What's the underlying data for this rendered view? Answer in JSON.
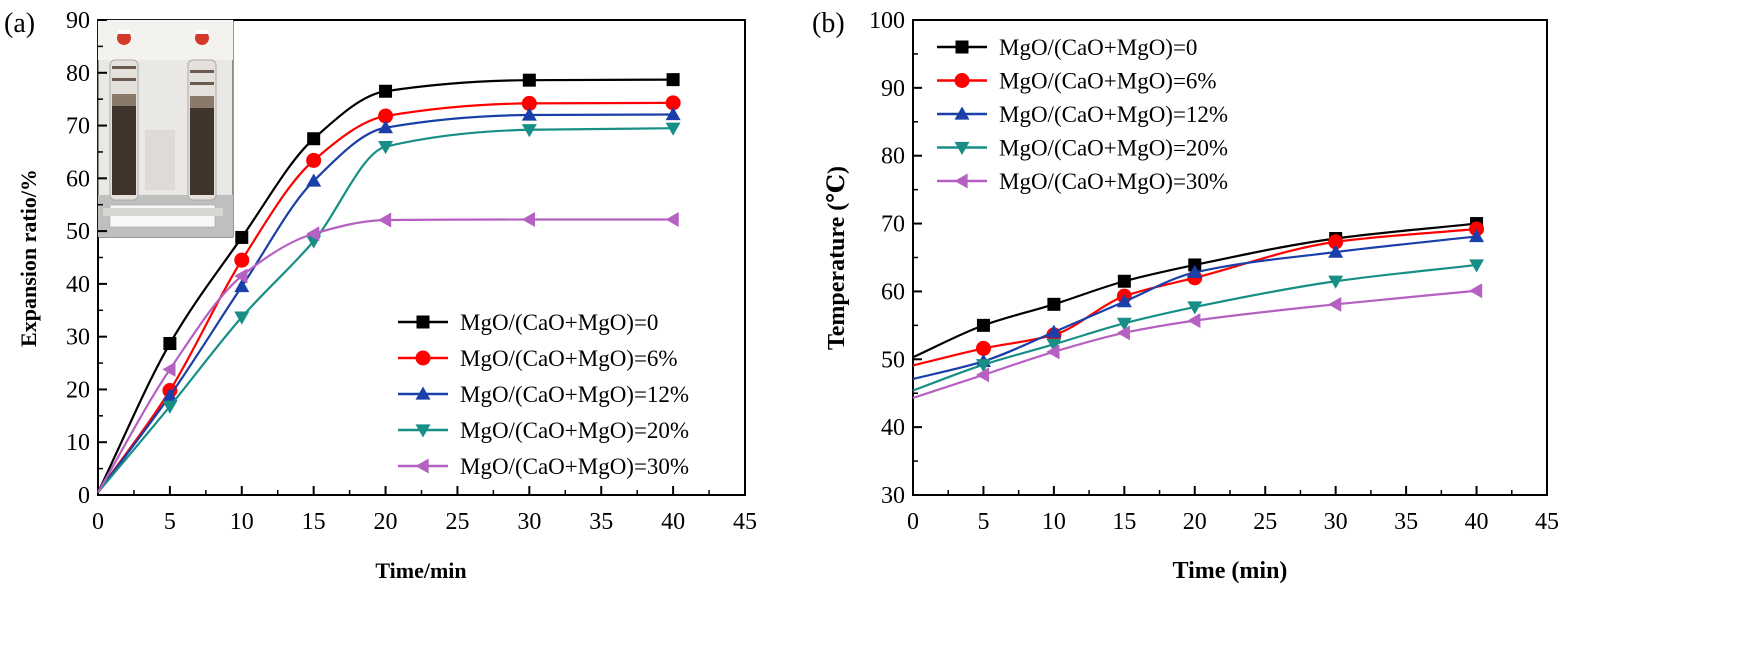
{
  "chart_data": [
    {
      "type": "line",
      "panel_label": "(a)",
      "xlabel": "Time/min",
      "ylabel": "Expansion ratio/%",
      "xlim": [
        0,
        45
      ],
      "ylim": [
        0,
        90
      ],
      "xticks": [
        0,
        5,
        10,
        15,
        20,
        25,
        30,
        35,
        40,
        45
      ],
      "yticks": [
        0,
        10,
        20,
        30,
        40,
        50,
        60,
        70,
        80,
        90
      ],
      "legend_position": "lower-right",
      "inset_image": "photo of two test tubes with expanded dark material",
      "series": [
        {
          "name": "MgO/(CaO+MgO)=0",
          "color": "#000000",
          "marker": "square",
          "x": [
            0,
            5,
            10,
            15,
            20,
            30,
            40
          ],
          "y": [
            0.5,
            28.7,
            48.8,
            67.5,
            76.5,
            78.6,
            78.7
          ]
        },
        {
          "name": "MgO/(CaO+MgO)=6%",
          "color": "#ff0000",
          "marker": "circle",
          "x": [
            0,
            5,
            10,
            15,
            20,
            30,
            40
          ],
          "y": [
            0.5,
            19.8,
            44.5,
            63.4,
            71.8,
            74.2,
            74.3
          ]
        },
        {
          "name": "MgO/(CaO+MgO)=12%",
          "color": "#1a3fa8",
          "marker": "triangle-up",
          "x": [
            0,
            5,
            10,
            15,
            20,
            30,
            40
          ],
          "y": [
            0.5,
            18.8,
            39.5,
            59.5,
            69.6,
            72.0,
            72.1
          ]
        },
        {
          "name": "MgO/(CaO+MgO)=20%",
          "color": "#178f86",
          "marker": "triangle-down",
          "x": [
            0,
            5,
            10,
            15,
            20,
            30,
            40
          ],
          "y": [
            0.5,
            16.8,
            33.7,
            48.1,
            66.0,
            69.2,
            69.5
          ]
        },
        {
          "name": "MgO/(CaO+MgO)=30%",
          "color": "#b561c1",
          "marker": "triangle-left",
          "x": [
            0,
            5,
            10,
            15,
            20,
            30,
            40
          ],
          "y": [
            0.5,
            23.8,
            41.5,
            49.5,
            52.1,
            52.2,
            52.2
          ]
        }
      ]
    },
    {
      "type": "line",
      "panel_label": "(b)",
      "xlabel": "Time (min)",
      "ylabel": "Temperature (℃)",
      "xlim": [
        0,
        45
      ],
      "ylim": [
        30,
        100
      ],
      "xticks": [
        0,
        5,
        10,
        15,
        20,
        25,
        30,
        35,
        40,
        45
      ],
      "yticks": [
        30,
        40,
        50,
        60,
        70,
        80,
        90,
        100
      ],
      "legend_position": "top-left",
      "series": [
        {
          "name": "MgO/(CaO+MgO)=0",
          "color": "#000000",
          "marker": "square",
          "x": [
            0,
            5,
            10,
            15,
            20,
            30,
            40
          ],
          "y": [
            50.3,
            55.0,
            58.1,
            61.5,
            63.9,
            67.8,
            70.0
          ]
        },
        {
          "name": "MgO/(CaO+MgO)=6%",
          "color": "#ff0000",
          "marker": "circle",
          "x": [
            0,
            5,
            10,
            15,
            20,
            30,
            40
          ],
          "y": [
            49.1,
            51.6,
            53.6,
            59.3,
            62.0,
            67.3,
            69.2
          ]
        },
        {
          "name": "MgO/(CaO+MgO)=12%",
          "color": "#1a3fa8",
          "marker": "triangle-up",
          "x": [
            0,
            5,
            10,
            15,
            20,
            30,
            40
          ],
          "y": [
            47.1,
            49.7,
            54.0,
            58.5,
            62.8,
            65.8,
            68.1
          ]
        },
        {
          "name": "MgO/(CaO+MgO)=20%",
          "color": "#178f86",
          "marker": "triangle-down",
          "x": [
            0,
            5,
            10,
            15,
            20,
            30,
            40
          ],
          "y": [
            45.4,
            49.2,
            52.2,
            55.3,
            57.7,
            61.5,
            63.9
          ]
        },
        {
          "name": "MgO/(CaO+MgO)=30%",
          "color": "#b561c1",
          "marker": "triangle-left",
          "x": [
            0,
            5,
            10,
            15,
            20,
            30,
            40
          ],
          "y": [
            44.3,
            47.7,
            51.1,
            53.9,
            55.7,
            58.1,
            60.1
          ]
        }
      ]
    }
  ]
}
